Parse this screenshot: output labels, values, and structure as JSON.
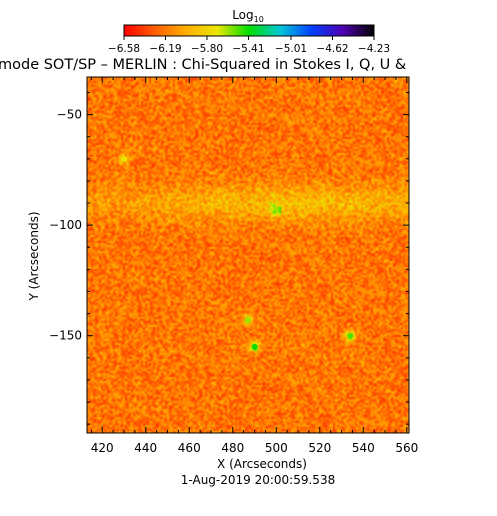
{
  "chart_data": {
    "type": "heatmap",
    "title": "mode SOT/SP – MERLIN : Chi-Squared in Stokes I, Q, U &",
    "subtitle": "1-Aug-2019 20:00:59.538",
    "xlabel": "X (Arcseconds)",
    "ylabel": "Y (Arcseconds)",
    "xlim": [
      413,
      561
    ],
    "ylim": [
      -194,
      -33
    ],
    "x_ticks": [
      420,
      440,
      460,
      480,
      500,
      520,
      540,
      560
    ],
    "y_ticks": [
      -50,
      -100,
      -150
    ],
    "x_tick_labels": [
      "420",
      "440",
      "460",
      "480",
      "500",
      "520",
      "540",
      "560"
    ],
    "y_tick_labels": [
      "−50",
      "−100",
      "−150"
    ],
    "colorbar": {
      "label": "Log",
      "label_subscript": "10",
      "range": [
        -6.58,
        -4.23
      ],
      "ticks": [
        -6.58,
        -6.19,
        -5.8,
        -5.41,
        -5.01,
        -4.62,
        -4.23
      ],
      "tick_labels": [
        "−6.58",
        "−6.19",
        "−5.80",
        "−5.41",
        "−5.01",
        "−4.62",
        "−4.23"
      ],
      "colors": [
        "#ff0000",
        "#ff6000",
        "#ffb000",
        "#e8e800",
        "#00dd00",
        "#00c8d8",
        "#0040ff",
        "#5000b0",
        "#000000"
      ]
    },
    "typical_value": -6.2,
    "features": [
      {
        "name": "bright-band",
        "x": 510,
        "y": -90,
        "value": -5.9
      },
      {
        "name": "patch",
        "x": 500,
        "y": -93,
        "value": -5.6
      },
      {
        "name": "patch",
        "x": 430,
        "y": -70,
        "value": -5.7
      },
      {
        "name": "patch",
        "x": 487,
        "y": -143,
        "value": -5.6
      },
      {
        "name": "patch",
        "x": 490,
        "y": -155,
        "value": -5.4
      },
      {
        "name": "patch",
        "x": 534,
        "y": -150,
        "value": -5.5
      }
    ]
  }
}
